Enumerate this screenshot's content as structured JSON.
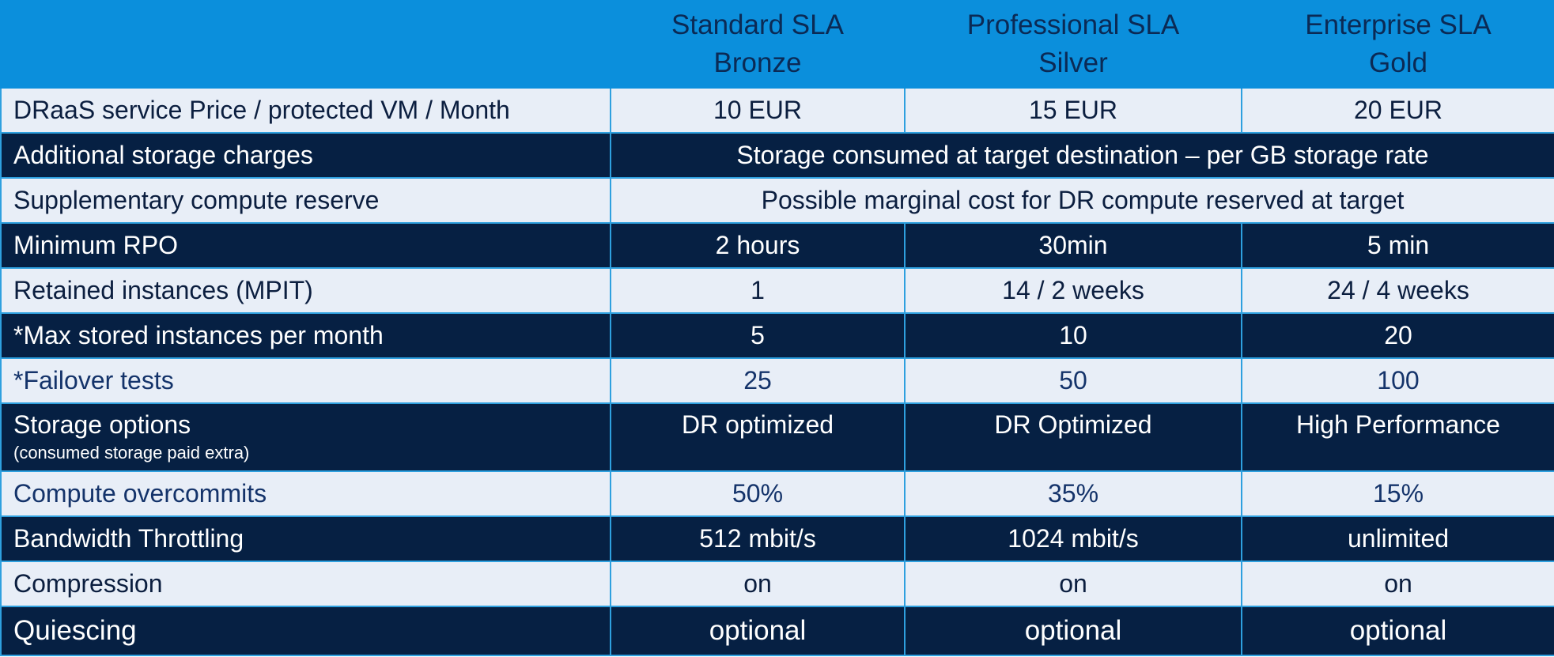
{
  "header": {
    "col1": "",
    "tiers": [
      {
        "name": "Standard SLA",
        "level": "Bronze"
      },
      {
        "name": "Professional SLA",
        "level": "Silver"
      },
      {
        "name": "Enterprise SLA",
        "level": "Gold"
      }
    ]
  },
  "rows": [
    {
      "label": "DRaaS service Price / protected VM / Month",
      "values": [
        "10 EUR",
        "15 EUR",
        "20 EUR"
      ]
    },
    {
      "label": "Additional storage charges",
      "merged": "Storage consumed at target destination – per GB storage rate"
    },
    {
      "label": "Supplementary compute reserve",
      "merged": "Possible marginal cost for DR compute reserved at target"
    },
    {
      "label": "Minimum RPO",
      "values": [
        "2 hours",
        "30min",
        "5 min"
      ]
    },
    {
      "label": "Retained instances (MPIT)",
      "values": [
        "1",
        "14 / 2 weeks",
        "24 / 4 weeks"
      ]
    },
    {
      "label": "*Max stored instances per month",
      "values": [
        "5",
        "10",
        "20"
      ]
    },
    {
      "label": "*Failover tests",
      "values": [
        "25",
        "50",
        "100"
      ]
    },
    {
      "label": "Storage options",
      "sublabel": "(consumed storage paid extra)",
      "values": [
        "DR optimized",
        "DR Optimized",
        "High Performance"
      ]
    },
    {
      "label": "Compute overcommits",
      "values": [
        "50%",
        "35%",
        "15%"
      ]
    },
    {
      "label": "Bandwidth Throttling",
      "values": [
        "512 mbit/s",
        "1024 mbit/s",
        "unlimited"
      ]
    },
    {
      "label": "Compression",
      "values": [
        "on",
        "on",
        "on"
      ]
    },
    {
      "label": "Quiescing",
      "values": [
        "optional",
        "optional",
        "optional"
      ]
    }
  ],
  "colors": {
    "header_bg": "#0b8fdc",
    "header_text": "#0b2a55",
    "row_light_bg": "#e8eef7",
    "row_dark_bg": "#062043",
    "border": "#2ea0df"
  }
}
